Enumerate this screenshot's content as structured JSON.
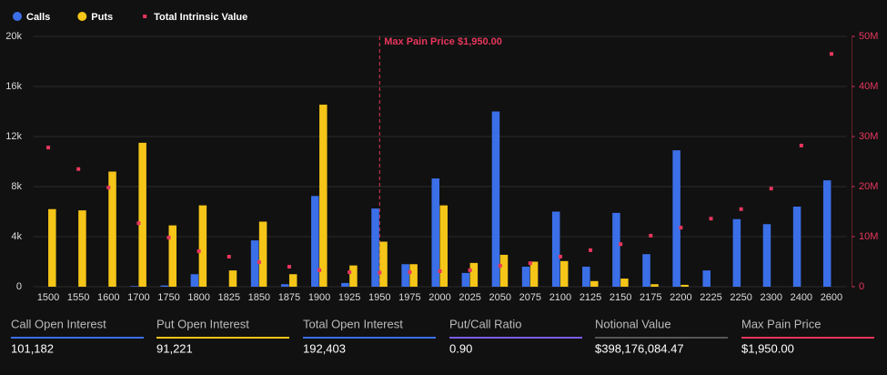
{
  "chart_data": {
    "type": "bar",
    "categories": [
      1500,
      1550,
      1600,
      1700,
      1750,
      1800,
      1825,
      1850,
      1875,
      1900,
      1925,
      1950,
      1975,
      2000,
      2025,
      2050,
      2075,
      2100,
      2125,
      2150,
      2175,
      2200,
      2225,
      2250,
      2300,
      2400,
      2600
    ],
    "series": [
      {
        "name": "Calls",
        "color": "#3b6fe8",
        "values": [
          0,
          0,
          0,
          50,
          100,
          1000,
          0,
          3700,
          200,
          7250,
          300,
          6250,
          1800,
          8650,
          1100,
          14000,
          1600,
          6000,
          1600,
          5900,
          2600,
          10900,
          1300,
          5400,
          5000,
          6400,
          8500
        ]
      },
      {
        "name": "Puts",
        "color": "#f5c518",
        "values": [
          6200,
          6100,
          9200,
          11500,
          4900,
          6500,
          1300,
          5200,
          1000,
          14550,
          1700,
          3600,
          1800,
          6500,
          1900,
          2550,
          2000,
          2050,
          450,
          650,
          200,
          150,
          0,
          0,
          0,
          0,
          0
        ]
      },
      {
        "name": "Total Intrinsic Value",
        "color": "#e8365d",
        "type": "scatter",
        "axis": "y2",
        "values": [
          27800000,
          23500000,
          19800000,
          12700000,
          9800000,
          7100000,
          6000000,
          4900000,
          4000000,
          3300000,
          2900000,
          2800000,
          2900000,
          3100000,
          3300000,
          4200000,
          4700000,
          6000000,
          7300000,
          8500000,
          10200000,
          11800000,
          13600000,
          15500000,
          19600000,
          28200000,
          46500000
        ]
      }
    ],
    "ylim": [
      0,
      20000
    ],
    "yticks": [
      0,
      {
        "value": 4000,
        "label": "4k"
      },
      {
        "value": 8000,
        "label": "8k"
      },
      {
        "value": 12000,
        "label": "12k"
      },
      {
        "value": 16000,
        "label": "16k"
      },
      {
        "value": 20000,
        "label": "20k"
      }
    ],
    "y2lim": [
      0,
      50000000
    ],
    "y2ticks": [
      0,
      {
        "value": 10000000,
        "label": "10M"
      },
      {
        "value": 20000000,
        "label": "20M"
      },
      {
        "value": 30000000,
        "label": "30M"
      },
      {
        "value": 40000000,
        "label": "40M"
      },
      {
        "value": 50000000,
        "label": "50M"
      }
    ],
    "grid": true,
    "annotation": {
      "text": "Max Pain Price $1,950.00",
      "x": 1950,
      "color": "#e8365d"
    }
  },
  "stats": [
    {
      "label": "Call Open Interest",
      "value": "101,182",
      "color": "#3b6fe8"
    },
    {
      "label": "Put Open Interest",
      "value": "91,221",
      "color": "#f5c518"
    },
    {
      "label": "Total Open Interest",
      "value": "192,403",
      "color": "#3b6fe8"
    },
    {
      "label": "Put/Call Ratio",
      "value": "0.90",
      "color": "#7b5ce8"
    },
    {
      "label": "Notional Value",
      "value": "$398,176,084.47",
      "color": "#555555"
    },
    {
      "label": "Max Pain Price",
      "value": "$1,950.00",
      "color": "#e8365d"
    }
  ]
}
